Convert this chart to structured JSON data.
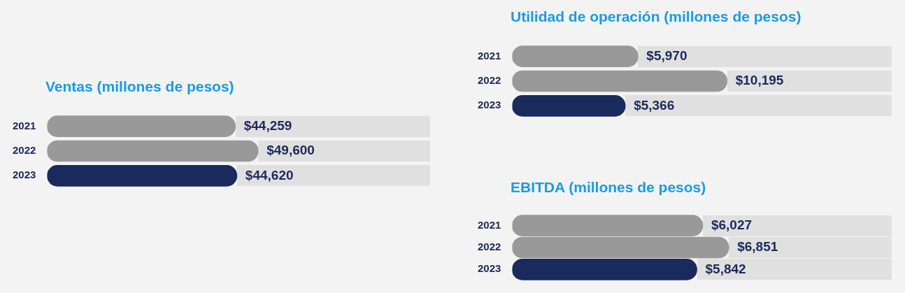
{
  "chart_data": [
    {
      "type": "bar",
      "orientation": "horizontal",
      "title": "Ventas (millones de pesos)",
      "categories": [
        "2021",
        "2022",
        "2023"
      ],
      "values": [
        44259,
        49600,
        44620
      ],
      "value_labels": [
        "$44,259",
        "$49,600",
        "$44,620"
      ],
      "colors": [
        "#999999",
        "#999999",
        "#1b2a5c"
      ],
      "legend": false
    },
    {
      "type": "bar",
      "orientation": "horizontal",
      "title": "Utilidad de operación  (millones de pesos)",
      "categories": [
        "2021",
        "2022",
        "2023"
      ],
      "values": [
        5970,
        10195,
        5366
      ],
      "value_labels": [
        "$5,970",
        "$10,195",
        "$5,366"
      ],
      "colors": [
        "#999999",
        "#999999",
        "#1b2a5c"
      ],
      "legend": false
    },
    {
      "type": "bar",
      "orientation": "horizontal",
      "title": "EBITDA (millones de pesos)",
      "categories": [
        "2021",
        "2022",
        "2023"
      ],
      "values": [
        6027,
        6851,
        5842
      ],
      "value_labels": [
        "$6,027",
        "$6,851",
        "$5,842"
      ],
      "colors": [
        "#999999",
        "#999999",
        "#1b2a5c"
      ],
      "legend": false
    }
  ]
}
